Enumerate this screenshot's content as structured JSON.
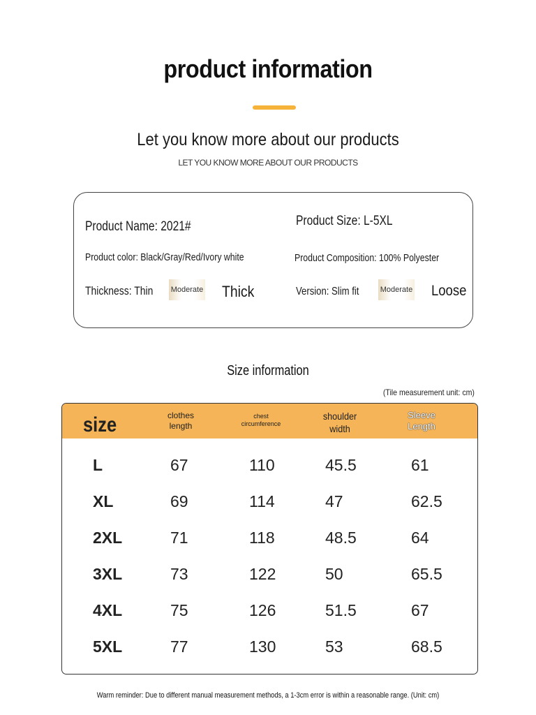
{
  "header": {
    "title": "product information",
    "subtitle": "Let you know more about our products",
    "subtitle_small": "LET YOU KNOW MORE ABOUT OUR PRODUCTS",
    "accent_color": "#f5b33a"
  },
  "product_info": {
    "name": "Product Name: 2021#",
    "size": "Product Size: L-5XL",
    "color": "Product color: Black/Gray/Red/Ivory white",
    "composition": "Product Composition: 100% Polyester",
    "thickness": {
      "label": "Thickness: Thin",
      "selected": "Moderate",
      "end": "Thick"
    },
    "version": {
      "label": "Version: Slim fit",
      "selected": "Moderate",
      "end": "Loose"
    }
  },
  "size_section": {
    "title": "Size information",
    "unit_note": "(Tile measurement unit: cm)",
    "header_color": "#f5b457",
    "columns": {
      "size": "size",
      "length_line1": "clothes",
      "length_line2": "length",
      "chest_line1": "chest",
      "chest_line2": "circumference",
      "shoulder_line1": "shoulder",
      "shoulder_line2": "width",
      "sleeve_line1": "Sleeve",
      "sleeve_line2": "Length"
    },
    "rows": [
      {
        "size": "L",
        "length": "67",
        "chest": "110",
        "shoulder": "45.5",
        "sleeve": "61"
      },
      {
        "size": "XL",
        "length": "69",
        "chest": "114",
        "shoulder": "47",
        "sleeve": "62.5"
      },
      {
        "size": "2XL",
        "length": "71",
        "chest": "118",
        "shoulder": "48.5",
        "sleeve": "64"
      },
      {
        "size": "3XL",
        "length": "73",
        "chest": "122",
        "shoulder": "50",
        "sleeve": "65.5"
      },
      {
        "size": "4XL",
        "length": "75",
        "chest": "126",
        "shoulder": "51.5",
        "sleeve": "67"
      },
      {
        "size": "5XL",
        "length": "77",
        "chest": "130",
        "shoulder": "53",
        "sleeve": "68.5"
      }
    ]
  },
  "footer": {
    "warm_reminder": "Warm reminder: Due to different manual measurement methods, a 1-3cm error is within a reasonable range. (Unit: cm)"
  }
}
